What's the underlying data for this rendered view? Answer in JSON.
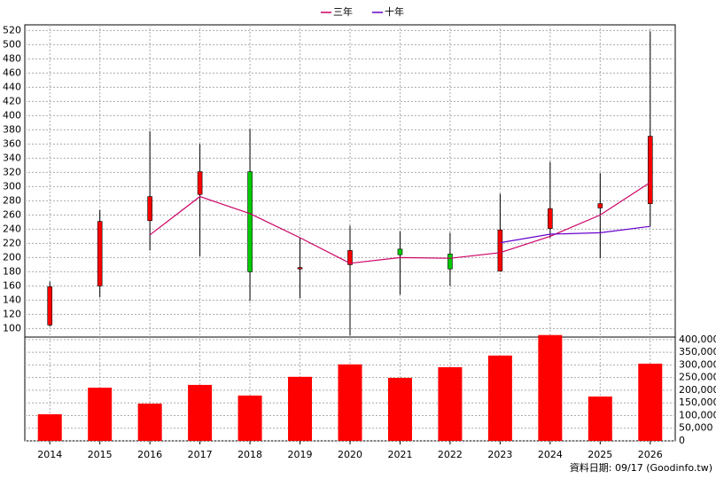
{
  "chart_data": [
    {
      "type": "candlestick",
      "categories": [
        "2014",
        "2015",
        "2016",
        "2017",
        "2018",
        "2019",
        "2020",
        "2021",
        "2022",
        "2023",
        "2024",
        "2025",
        "2026"
      ],
      "open": [
        105,
        160,
        252,
        289,
        321,
        184,
        190,
        212,
        205,
        181,
        241,
        270,
        276
      ],
      "high": [
        166,
        267,
        378,
        360,
        381,
        228,
        245,
        237,
        235,
        290,
        335,
        319,
        519
      ],
      "low": [
        103,
        144,
        210,
        202,
        139,
        143,
        90,
        148,
        160,
        181,
        228,
        199,
        244
      ],
      "close": [
        159,
        251,
        286,
        321,
        180,
        186,
        210,
        204,
        184,
        239,
        269,
        276,
        371
      ],
      "up_color": "#ff0000",
      "down_color": "#00cc00",
      "series": [
        {
          "name": "三年",
          "color": "#cc0066",
          "values": [
            null,
            null,
            232,
            286,
            262,
            228,
            192,
            200,
            199,
            207,
            230,
            260,
            306
          ]
        },
        {
          "name": "十年",
          "color": "#6600cc",
          "values": [
            null,
            null,
            null,
            null,
            null,
            null,
            null,
            null,
            null,
            221,
            233,
            235,
            244
          ]
        }
      ],
      "ylim": [
        88,
        528
      ],
      "yticks": [
        100,
        120,
        140,
        160,
        180,
        200,
        220,
        240,
        260,
        280,
        300,
        320,
        340,
        360,
        380,
        400,
        420,
        440,
        460,
        480,
        500,
        520
      ],
      "grid": true,
      "legend": "top"
    },
    {
      "type": "bar",
      "values": [
        105000,
        210000,
        147000,
        221000,
        179000,
        253000,
        302000,
        249000,
        291000,
        337000,
        418000,
        175000,
        305000
      ],
      "color": "#ff0000",
      "ylim": [
        0,
        410000
      ],
      "yticks": [
        0,
        {
          "value": 50000,
          "label": "50,000"
        },
        {
          "value": 100000,
          "label": "100,000"
        },
        {
          "value": 150000,
          "label": "150,000"
        },
        {
          "value": 200000,
          "label": "200,000"
        },
        {
          "value": 250000,
          "label": "250,000"
        },
        {
          "value": 300000,
          "label": "300,000"
        },
        {
          "value": 350000,
          "label": "350,000"
        },
        {
          "value": 400000,
          "label": "400,000"
        }
      ],
      "grid": true,
      "note": "資料日期: 09/17  (Goodinfo.tw)"
    }
  ]
}
